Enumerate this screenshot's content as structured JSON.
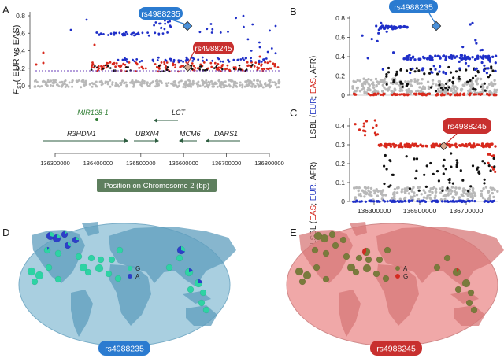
{
  "panels": {
    "A": {
      "letter": "A",
      "ylabel_sub": "ST",
      "ylabel_rest": "( EUR vs EAS)",
      "yticks": [
        "0",
        "0.2",
        "0.4",
        "0.6",
        "0.8"
      ],
      "callout_blue": "rs4988235",
      "callout_red": "rs4988245",
      "genes": [
        "MIR128-1",
        "LCT",
        "R3HDM1",
        "UBXN4",
        "MCM6",
        "DARS1"
      ],
      "xticks": [
        "136300000",
        "136400000",
        "136500000",
        "136600000",
        "136700000",
        "136800000"
      ],
      "xlabel": "Position on Chromosome 2 (bp)"
    },
    "B": {
      "letter": "B",
      "ylabel_parts": [
        {
          "text": "LSBL (",
          "color": "#222222"
        },
        {
          "text": "EUR",
          "color": "#2b3fc4"
        },
        {
          "text": "; ",
          "color": "#222222"
        },
        {
          "text": "EAS",
          "color": "#d42a20"
        },
        {
          "text": ", AFR)",
          "color": "#222222"
        }
      ],
      "yticks": [
        "0",
        "0.2",
        "0.4",
        "0.6",
        "0.8"
      ],
      "callout": "rs4988235"
    },
    "C": {
      "letter": "C",
      "ylabel_parts": [
        {
          "text": "LSBL (",
          "color": "#222222"
        },
        {
          "text": "EAS",
          "color": "#d42a20"
        },
        {
          "text": "; ",
          "color": "#222222"
        },
        {
          "text": "EUR",
          "color": "#2b3fc4"
        },
        {
          "text": ", AFR)",
          "color": "#222222"
        }
      ],
      "yticks": [
        "0",
        "0.1",
        "0.2",
        "0.3",
        "0.4"
      ],
      "xticks": [
        "136300000",
        "136500000",
        "136700000"
      ],
      "callout": "rs4988245"
    },
    "D": {
      "letter": "D",
      "legend": [
        {
          "label": "G",
          "color": "#2ed3a4"
        },
        {
          "label": "A",
          "color": "#2d3fc9"
        }
      ],
      "snp": "rs4988235"
    },
    "E": {
      "letter": "E",
      "legend": [
        {
          "label": "A",
          "color": "#7a7b3c"
        },
        {
          "label": "G",
          "color": "#d42a20"
        }
      ],
      "snp": "rs4988245"
    }
  },
  "colors": {
    "blue_points": "#1f2fc8",
    "red_points": "#d8291c",
    "black_points": "#111111",
    "grey_points": "#b8b8b8",
    "callout_blue": "#2b7bd0",
    "callout_red": "#c8302f",
    "gene_green": "#2e7d32",
    "xlabel_box": "#5e7f5e",
    "ocean_D": "#a9cfe0",
    "land_D": "#5f9ebd",
    "ocean_E": "#f0a8a8",
    "land_E": "#d77878",
    "threshold": "#6a3db8"
  }
}
